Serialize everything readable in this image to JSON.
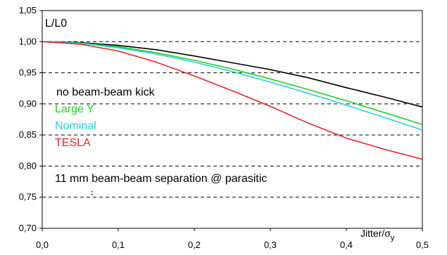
{
  "chart_data": {
    "type": "line",
    "ylabel": "L/L0",
    "xlabel": "Jitter/σy",
    "xlabel_main": "Jitter/σ",
    "xlabel_sub": "y",
    "xlim": [
      0,
      0.5
    ],
    "ylim": [
      0.7,
      1.05
    ],
    "x_ticks": [
      0.0,
      0.1,
      0.2,
      0.3,
      0.4,
      0.5
    ],
    "x_tick_labels": [
      "0,0",
      "0,1",
      "0,2",
      "0,3",
      "0,4",
      "0,5"
    ],
    "y_ticks": [
      0.7,
      0.75,
      0.8,
      0.85,
      0.9,
      0.95,
      1.0,
      1.05
    ],
    "y_tick_labels": [
      "0,70",
      "0,75",
      "0,80",
      "0,85",
      "0,90",
      "0,95",
      "1,00",
      "1,05"
    ],
    "grid": "horizontal-dashed",
    "series": [
      {
        "name": "no beam-beam kick",
        "color": "#000000",
        "x": [
          0.0,
          0.05,
          0.1,
          0.15,
          0.2,
          0.25,
          0.3,
          0.35,
          0.4,
          0.45,
          0.5
        ],
        "y": [
          1.0,
          0.9985,
          0.994,
          0.987,
          0.977,
          0.966,
          0.955,
          0.942,
          0.926,
          0.911,
          0.895
        ]
      },
      {
        "name": "Large Y",
        "color": "#22cc22",
        "x": [
          0.0,
          0.05,
          0.1,
          0.15,
          0.2,
          0.25,
          0.3,
          0.35,
          0.4,
          0.45,
          0.5
        ],
        "y": [
          1.0,
          0.998,
          0.992,
          0.982,
          0.97,
          0.956,
          0.94,
          0.923,
          0.905,
          0.886,
          0.867
        ]
      },
      {
        "name": "Nominal",
        "color": "#22d3e6",
        "x": [
          0.0,
          0.05,
          0.1,
          0.15,
          0.2,
          0.25,
          0.3,
          0.35,
          0.4,
          0.45,
          0.5
        ],
        "y": [
          1.0,
          0.9975,
          0.99,
          0.98,
          0.967,
          0.952,
          0.935,
          0.917,
          0.898,
          0.878,
          0.858
        ]
      },
      {
        "name": "TESLA",
        "color": "#e8242a",
        "x": [
          0.0,
          0.05,
          0.1,
          0.15,
          0.2,
          0.25,
          0.3,
          0.35,
          0.4,
          0.45,
          0.5
        ],
        "y": [
          1.0,
          0.996,
          0.985,
          0.967,
          0.945,
          0.921,
          0.896,
          0.869,
          0.845,
          0.827,
          0.811
        ]
      }
    ],
    "annotations": [
      {
        "text": "no beam-beam kick",
        "color": "#000000"
      },
      {
        "text": "Large Y",
        "color": "#22cc22"
      },
      {
        "text": "Nominal",
        "color": "#22d3e6"
      },
      {
        "text": "TESLA",
        "color": "#e8242a"
      },
      {
        "text": "11 mm beam-beam separation @ parasitic",
        "color": "#000000"
      }
    ]
  }
}
